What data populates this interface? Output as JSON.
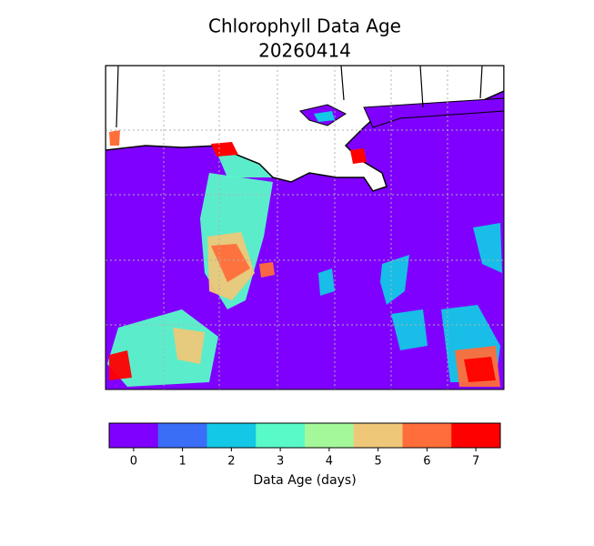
{
  "title": [
    "Chlorophyll Data Age",
    "20260414"
  ],
  "colorbar": {
    "label": "Data Age (days)",
    "ticks": [
      0,
      1,
      2,
      3,
      4,
      5,
      6,
      7
    ],
    "colors": [
      "#8000ff",
      "#3a6ef7",
      "#12c8e6",
      "#58fac8",
      "#a4f89a",
      "#eec878",
      "#ff6e3a",
      "#ff0000"
    ]
  }
}
